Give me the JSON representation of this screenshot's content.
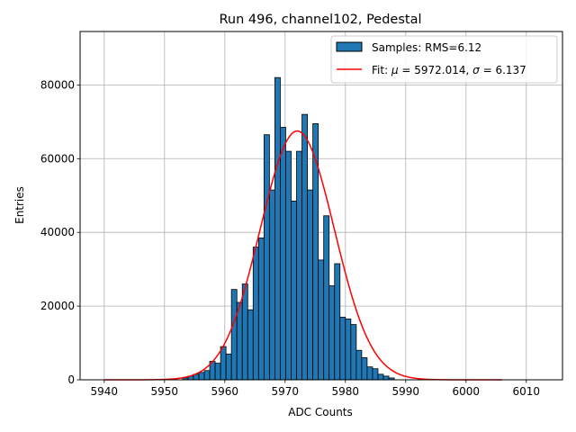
{
  "chart_data": {
    "type": "histogram",
    "title": "Run 496, channel102, Pedestal",
    "xlabel": "ADC Counts",
    "ylabel": "Entries",
    "xlim": [
      5936,
      6016
    ],
    "ylim": [
      0,
      94500
    ],
    "xticks": [
      5940,
      5950,
      5960,
      5970,
      5980,
      5990,
      6000,
      6010
    ],
    "yticks": [
      0,
      20000,
      40000,
      60000,
      80000
    ],
    "grid": true,
    "legend_position": "top-right",
    "bin_width": 0.9,
    "colors": {
      "bars": "#1f77b4",
      "fit": "#ff0000",
      "grid": "#b0b0b0"
    },
    "histogram": {
      "name": "Samples: RMS=6.12",
      "bins": [
        {
          "x": 5953.0,
          "y": 500
        },
        {
          "x": 5953.9,
          "y": 1000
        },
        {
          "x": 5954.8,
          "y": 1500
        },
        {
          "x": 5955.7,
          "y": 2000
        },
        {
          "x": 5956.6,
          "y": 2500
        },
        {
          "x": 5957.5,
          "y": 5000
        },
        {
          "x": 5958.4,
          "y": 4500
        },
        {
          "x": 5959.3,
          "y": 9000
        },
        {
          "x": 5960.2,
          "y": 7000
        },
        {
          "x": 5961.1,
          "y": 24500
        },
        {
          "x": 5962.0,
          "y": 21000
        },
        {
          "x": 5962.9,
          "y": 26000
        },
        {
          "x": 5963.8,
          "y": 19000
        },
        {
          "x": 5964.7,
          "y": 36000
        },
        {
          "x": 5965.6,
          "y": 38500
        },
        {
          "x": 5966.5,
          "y": 66500
        },
        {
          "x": 5967.4,
          "y": 51500
        },
        {
          "x": 5968.3,
          "y": 82000
        },
        {
          "x": 5969.2,
          "y": 68500
        },
        {
          "x": 5970.1,
          "y": 62000
        },
        {
          "x": 5971.0,
          "y": 48500
        },
        {
          "x": 5971.9,
          "y": 62000
        },
        {
          "x": 5972.8,
          "y": 72000
        },
        {
          "x": 5973.7,
          "y": 51500
        },
        {
          "x": 5974.6,
          "y": 69500
        },
        {
          "x": 5975.5,
          "y": 32500
        },
        {
          "x": 5976.4,
          "y": 44500
        },
        {
          "x": 5977.3,
          "y": 25500
        },
        {
          "x": 5978.2,
          "y": 31500
        },
        {
          "x": 5979.1,
          "y": 17000
        },
        {
          "x": 5980.0,
          "y": 16500
        },
        {
          "x": 5980.9,
          "y": 15000
        },
        {
          "x": 5981.8,
          "y": 8000
        },
        {
          "x": 5982.7,
          "y": 6000
        },
        {
          "x": 5983.6,
          "y": 3500
        },
        {
          "x": 5984.5,
          "y": 3000
        },
        {
          "x": 5985.4,
          "y": 1500
        },
        {
          "x": 5986.3,
          "y": 1000
        },
        {
          "x": 5987.2,
          "y": 500
        }
      ]
    },
    "fit": {
      "name_prefix": "Fit: ",
      "mu_symbol": "μ",
      "mu_value": " = 5972.014, ",
      "sigma_symbol": "σ",
      "sigma_value": " = 6.137",
      "type": "gaussian",
      "mu": 5972.014,
      "sigma": 6.137,
      "amplitude": 67500,
      "x_range": [
        5940,
        6006
      ]
    }
  }
}
